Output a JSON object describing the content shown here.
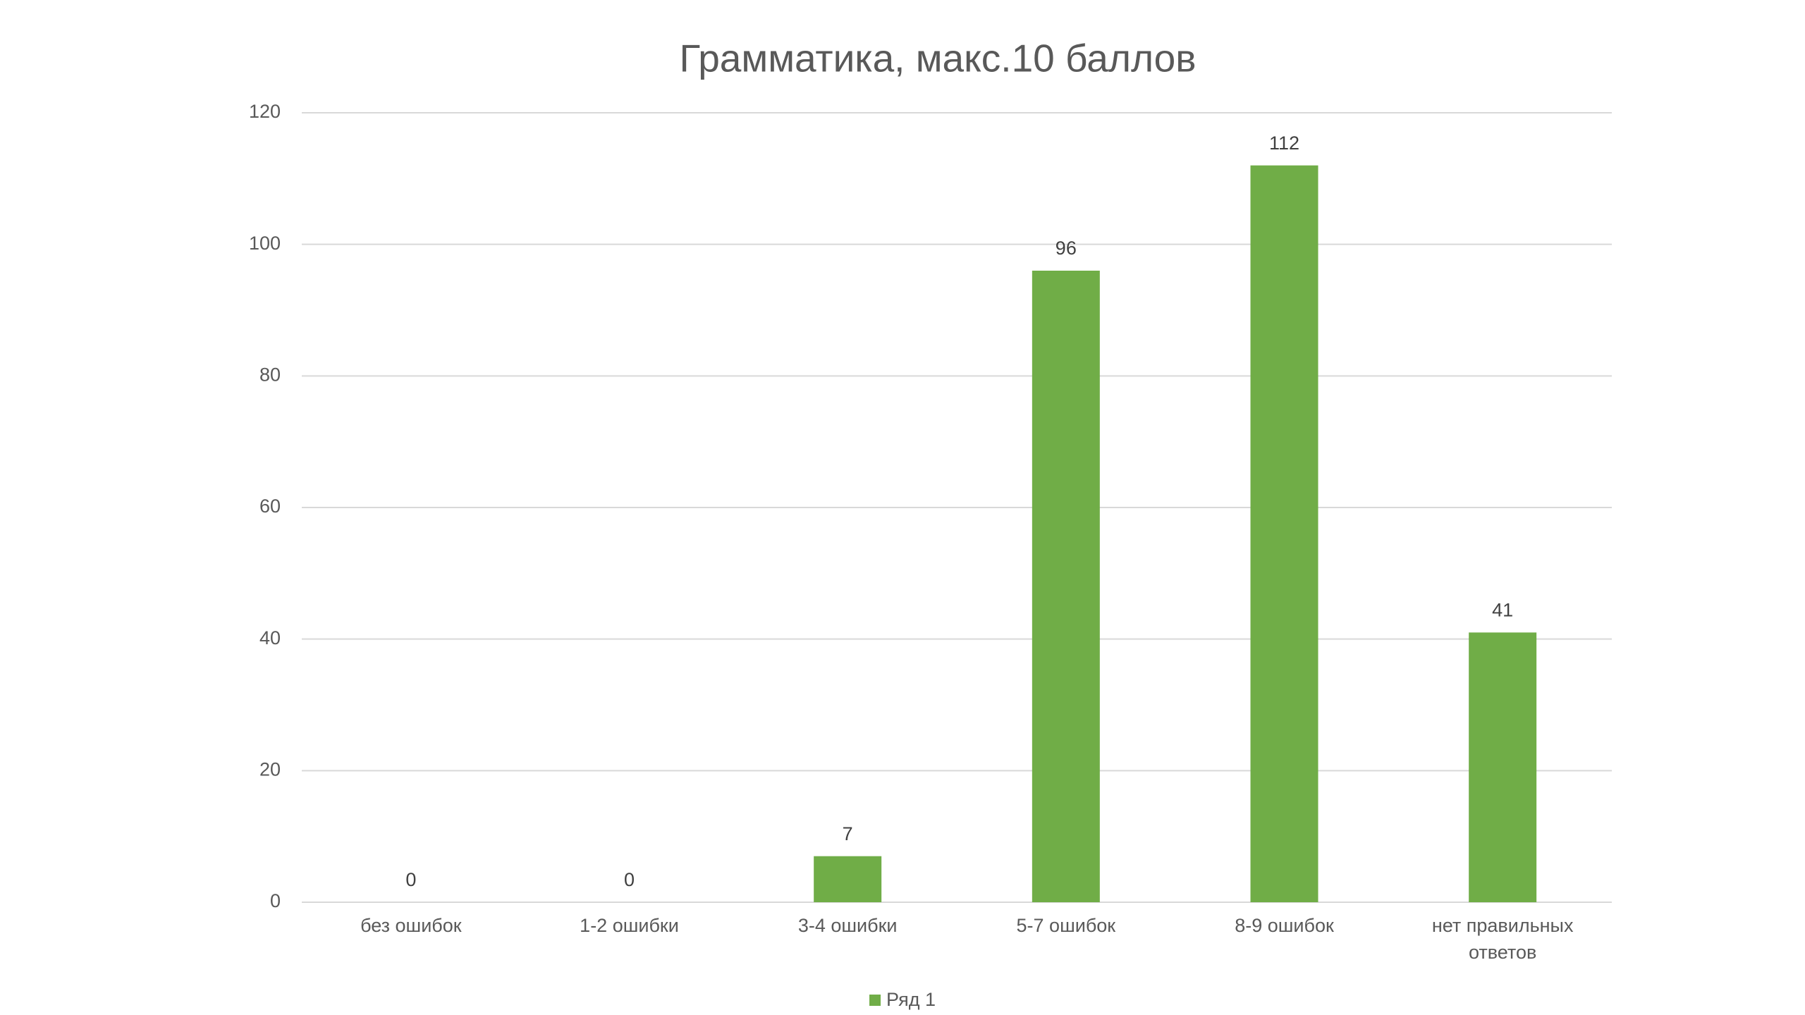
{
  "chart_data": {
    "type": "bar",
    "title": "Грамматика, макс.10 баллов",
    "categories": [
      "без ошибок",
      "1-2 ошибки",
      "3-4 ошибки",
      "5-7 ошибок",
      "8-9 ошибок",
      "нет правильных ответов"
    ],
    "series": [
      {
        "name": "Ряд 1",
        "color": "#70ad47",
        "values": [
          0,
          0,
          7,
          96,
          112,
          41
        ]
      }
    ],
    "ylim": [
      0,
      120
    ],
    "yticks": [
      0,
      20,
      40,
      60,
      80,
      100,
      120
    ],
    "grid": true,
    "legend": "bottom"
  }
}
